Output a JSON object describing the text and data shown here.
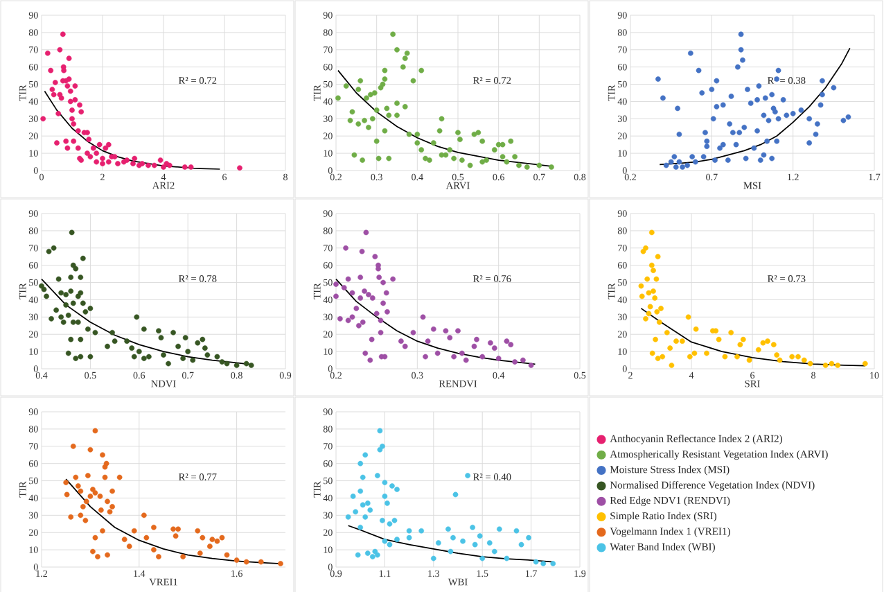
{
  "chart_data": [
    {
      "type": "scatter",
      "xlabel": "ARI2",
      "ylabel": "TIR",
      "xlim": [
        0,
        8
      ],
      "xticks": [
        0,
        2,
        4,
        6,
        8
      ],
      "ylim": [
        0,
        90
      ],
      "yticks": [
        0,
        10,
        20,
        30,
        40,
        50,
        60,
        70,
        80,
        90
      ],
      "grid": true,
      "marker": "circle",
      "annotations": [
        "R² = 0.72"
      ],
      "series": [
        {
          "name": "Anthocyanin Reflectance Index 2 (ARI2)",
          "color": "#e6206f",
          "x": [
            0.05,
            0.2,
            0.3,
            0.35,
            0.4,
            0.45,
            0.5,
            0.55,
            0.6,
            0.6,
            0.65,
            0.7,
            0.72,
            0.73,
            0.7,
            0.8,
            0.85,
            0.8,
            0.85,
            0.9,
            0.9,
            0.95,
            0.95,
            1.0,
            1.0,
            1.05,
            1.1,
            1.1,
            1.05,
            1.2,
            1.25,
            1.3,
            1.2,
            1.25,
            1.3,
            1.4,
            1.5,
            1.55,
            1.5,
            1.6,
            1.7,
            1.8,
            1.8,
            1.9,
            2.0,
            2.0,
            2.1,
            2.2,
            2.2,
            2.3,
            2.4,
            2.5,
            2.7,
            2.8,
            3.0,
            3.05,
            3.2,
            3.3,
            3.5,
            3.7,
            3.9,
            4.0,
            4.1,
            4.2,
            4.7,
            4.9,
            6.5
          ],
          "values": [
            30,
            68,
            58,
            47,
            44,
            51,
            16,
            33,
            70,
            44,
            42,
            79,
            60,
            58,
            52,
            52,
            49,
            17,
            13,
            65,
            53,
            46,
            40,
            35,
            30,
            27,
            49,
            41,
            17,
            23,
            38,
            34,
            13,
            7,
            6,
            22,
            22,
            18,
            10,
            8,
            13,
            10,
            5,
            15,
            7,
            4,
            13,
            15,
            5,
            8,
            8,
            4,
            5,
            6,
            4,
            7,
            3,
            4,
            3,
            3,
            6,
            2,
            4,
            3,
            2,
            2,
            1.5
          ]
        },
        {
          "type": "line",
          "marker": "none",
          "color": "#000000",
          "x": [
            0.1,
            0.5,
            1,
            1.5,
            2,
            2.5,
            3,
            4,
            5,
            5.85
          ],
          "values": [
            46,
            35,
            24.5,
            17,
            11.5,
            8,
            5.5,
            2.7,
            1.3,
            0.8
          ]
        }
      ]
    },
    {
      "type": "scatter",
      "xlabel": "ARVI",
      "ylabel": "TIR",
      "xlim": [
        0.2,
        0.8
      ],
      "xticks": [
        0.2,
        0.3,
        0.4,
        0.5,
        0.6,
        0.7,
        0.8
      ],
      "ylim": [
        0,
        90
      ],
      "yticks": [
        0,
        10,
        20,
        30,
        40,
        50,
        60,
        70,
        80,
        90
      ],
      "grid": true,
      "marker": "circle",
      "annotations": [
        "R² = 0.72"
      ],
      "series": [
        {
          "name": "Atmospherically Resistant Vegetation Index (ARVI)",
          "color": "#70ad47",
          "x": [
            0.205,
            0.225,
            0.235,
            0.24,
            0.245,
            0.255,
            0.255,
            0.26,
            0.265,
            0.27,
            0.275,
            0.28,
            0.285,
            0.29,
            0.295,
            0.3,
            0.3,
            0.305,
            0.31,
            0.315,
            0.32,
            0.32,
            0.32,
            0.325,
            0.33,
            0.33,
            0.34,
            0.35,
            0.35,
            0.35,
            0.365,
            0.37,
            0.37,
            0.375,
            0.38,
            0.39,
            0.4,
            0.4,
            0.41,
            0.41,
            0.42,
            0.43,
            0.44,
            0.455,
            0.46,
            0.46,
            0.47,
            0.48,
            0.49,
            0.5,
            0.505,
            0.51,
            0.53,
            0.54,
            0.55,
            0.56,
            0.56,
            0.57,
            0.59,
            0.6,
            0.61,
            0.61,
            0.62,
            0.63,
            0.64,
            0.65,
            0.67,
            0.7,
            0.73
          ],
          "values": [
            42,
            49,
            29,
            34,
            9,
            27,
            47,
            52,
            6,
            29,
            42,
            25,
            44,
            30,
            45,
            35,
            17,
            7,
            48,
            50,
            53,
            58,
            23,
            36,
            7,
            32,
            79,
            70,
            39,
            32,
            60,
            65,
            37,
            68,
            21,
            52,
            21,
            16,
            58,
            12,
            7,
            6,
            16,
            23,
            30,
            9,
            9,
            12,
            7,
            22,
            18,
            6,
            3,
            21,
            22,
            17,
            5,
            6,
            12,
            15,
            15,
            8,
            5,
            17,
            8,
            3,
            2,
            3,
            2
          ]
        },
        {
          "type": "line",
          "marker": "none",
          "color": "#000000",
          "x": [
            0.205,
            0.25,
            0.3,
            0.35,
            0.4,
            0.45,
            0.5,
            0.6,
            0.73
          ],
          "values": [
            58,
            45,
            34,
            25.5,
            19,
            14,
            10.5,
            6,
            2.5
          ]
        }
      ]
    },
    {
      "type": "scatter",
      "xlabel": "MSI",
      "ylabel": "TIR",
      "xlim": [
        0.2,
        1.7
      ],
      "xticks": [
        0.2,
        0.7,
        1.2,
        1.7
      ],
      "ylim": [
        0,
        90
      ],
      "yticks": [
        0,
        10,
        20,
        30,
        40,
        50,
        60,
        70,
        80,
        90
      ],
      "grid": true,
      "marker": "circle",
      "annotations": [
        "R² = 0.38"
      ],
      "series": [
        {
          "name": "Moisture Stress Index (MSI)",
          "color": "#4472c4",
          "x": [
            0.37,
            0.4,
            0.42,
            0.45,
            0.47,
            0.48,
            0.49,
            0.5,
            0.5,
            0.52,
            0.55,
            0.57,
            0.58,
            0.6,
            0.62,
            0.64,
            0.65,
            0.66,
            0.67,
            0.67,
            0.7,
            0.71,
            0.72,
            0.73,
            0.73,
            0.75,
            0.77,
            0.77,
            0.8,
            0.81,
            0.82,
            0.83,
            0.85,
            0.86,
            0.87,
            0.88,
            0.88,
            0.89,
            0.9,
            0.91,
            0.92,
            0.94,
            0.96,
            0.98,
            0.98,
            0.99,
            1.0,
            1.02,
            1.02,
            1.03,
            1.04,
            1.05,
            1.07,
            1.07,
            1.08,
            1.09,
            1.1,
            1.1,
            1.11,
            1.11,
            1.14,
            1.16,
            1.2,
            1.25,
            1.3,
            1.3,
            1.34,
            1.35,
            1.37,
            1.38,
            1.38,
            1.45,
            1.51,
            1.54
          ],
          "values": [
            53,
            42,
            3,
            5,
            8,
            2,
            36,
            21,
            5,
            2,
            3,
            68,
            8,
            5,
            58,
            45,
            8,
            22,
            17,
            14,
            47,
            30,
            6,
            52,
            37,
            13,
            38,
            15,
            6,
            27,
            43,
            22,
            15,
            60,
            22,
            79,
            70,
            64,
            25,
            7,
            47,
            39,
            13,
            41,
            23,
            49,
            6,
            9,
            32,
            42,
            17,
            29,
            7,
            44,
            36,
            34,
            53,
            17,
            58,
            30,
            41,
            32,
            33,
            35,
            30,
            16,
            21,
            27,
            38,
            44,
            52,
            48,
            29,
            31
          ]
        },
        {
          "type": "line",
          "marker": "none",
          "color": "#000000",
          "x": [
            0.38,
            0.5,
            0.6,
            0.7,
            0.8,
            0.9,
            1.0,
            1.1,
            1.2,
            1.3,
            1.4,
            1.5,
            1.55
          ],
          "values": [
            3.5,
            4.2,
            5,
            6.5,
            9,
            11.5,
            15,
            20,
            28,
            37,
            48,
            62,
            71
          ]
        }
      ]
    },
    {
      "type": "scatter",
      "xlabel": "NDVI",
      "ylabel": "TIR",
      "xlim": [
        0.4,
        0.9
      ],
      "xticks": [
        0.4,
        0.5,
        0.6,
        0.7,
        0.8,
        0.9
      ],
      "ylim": [
        0,
        90
      ],
      "yticks": [
        0,
        10,
        20,
        30,
        40,
        50,
        60,
        70,
        80,
        90
      ],
      "grid": true,
      "marker": "circle",
      "annotations": [
        "R² = 0.78"
      ],
      "series": [
        {
          "name": "Normalised Difference Vegetation Index (NDVI)",
          "color": "#375623",
          "x": [
            0.4,
            0.405,
            0.41,
            0.415,
            0.42,
            0.425,
            0.43,
            0.435,
            0.44,
            0.44,
            0.445,
            0.45,
            0.45,
            0.455,
            0.455,
            0.46,
            0.46,
            0.46,
            0.462,
            0.465,
            0.465,
            0.465,
            0.47,
            0.47,
            0.475,
            0.475,
            0.48,
            0.48,
            0.48,
            0.48,
            0.485,
            0.485,
            0.49,
            0.495,
            0.5,
            0.5,
            0.51,
            0.535,
            0.545,
            0.55,
            0.575,
            0.585,
            0.59,
            0.595,
            0.6,
            0.61,
            0.61,
            0.62,
            0.64,
            0.645,
            0.65,
            0.66,
            0.67,
            0.68,
            0.69,
            0.695,
            0.7,
            0.71,
            0.72,
            0.73,
            0.735,
            0.74,
            0.76,
            0.77,
            0.78,
            0.8,
            0.82,
            0.83
          ],
          "values": [
            48,
            46,
            42,
            68,
            29,
            70,
            34,
            52,
            44,
            30,
            27,
            43,
            37,
            31,
            9,
            53,
            45,
            17,
            79,
            60,
            38,
            27,
            6,
            58,
            42,
            27,
            53,
            44,
            17,
            7,
            64,
            38,
            33,
            23,
            35,
            7,
            21,
            13,
            21,
            16,
            16,
            12,
            7,
            30,
            10,
            23,
            6,
            7,
            22,
            18,
            8,
            3,
            21,
            13,
            6,
            18,
            10,
            5,
            15,
            17,
            12,
            8,
            7,
            4,
            3,
            2,
            3,
            2
          ]
        },
        {
          "type": "line",
          "marker": "none",
          "color": "#000000",
          "x": [
            0.4,
            0.45,
            0.5,
            0.55,
            0.6,
            0.65,
            0.7,
            0.75,
            0.8,
            0.83
          ],
          "values": [
            52,
            37,
            27,
            19.5,
            14,
            10,
            7,
            5,
            3.5,
            2.5
          ]
        }
      ]
    },
    {
      "type": "scatter",
      "xlabel": "RENDVI",
      "ylabel": "TIR",
      "xlim": [
        0.2,
        0.5
      ],
      "xticks": [
        0.2,
        0.3,
        0.4,
        0.5
      ],
      "ylim": [
        0,
        90
      ],
      "yticks": [
        0,
        10,
        20,
        30,
        40,
        50,
        60,
        70,
        80,
        90
      ],
      "grid": true,
      "marker": "circle",
      "annotations": [
        "R² = 0.76"
      ],
      "series": [
        {
          "name": "Red Edge NDV1 (RENDVI)",
          "color": "#9e4fa5",
          "x": [
            0.2,
            0.2,
            0.205,
            0.21,
            0.212,
            0.215,
            0.215,
            0.22,
            0.22,
            0.225,
            0.228,
            0.23,
            0.23,
            0.232,
            0.233,
            0.235,
            0.236,
            0.237,
            0.24,
            0.242,
            0.244,
            0.245,
            0.248,
            0.25,
            0.252,
            0.252,
            0.253,
            0.255,
            0.255,
            0.256,
            0.258,
            0.258,
            0.26,
            0.262,
            0.263,
            0.27,
            0.28,
            0.285,
            0.295,
            0.307,
            0.31,
            0.313,
            0.32,
            0.325,
            0.335,
            0.34,
            0.345,
            0.35,
            0.355,
            0.36,
            0.37,
            0.373,
            0.38,
            0.39,
            0.395,
            0.4,
            0.41,
            0.415,
            0.42,
            0.43,
            0.44
          ],
          "values": [
            49,
            42,
            29,
            47,
            70,
            52,
            28,
            44,
            30,
            35,
            25,
            53,
            41,
            68,
            27,
            45,
            9,
            79,
            43,
            5,
            17,
            41,
            65,
            32,
            60,
            58,
            53,
            28,
            21,
            7,
            50,
            38,
            7,
            44,
            33,
            52,
            16,
            13,
            21,
            30,
            7,
            16,
            23,
            9,
            22,
            18,
            7,
            22,
            9,
            5,
            13,
            17,
            7,
            15,
            12,
            6,
            16,
            14,
            4,
            5,
            2
          ]
        },
        {
          "type": "line",
          "marker": "none",
          "color": "#000000",
          "x": [
            0.2,
            0.225,
            0.25,
            0.275,
            0.3,
            0.325,
            0.35,
            0.375,
            0.4,
            0.445
          ],
          "values": [
            52,
            39,
            30,
            22,
            16,
            12,
            9,
            6.8,
            5,
            2.7
          ]
        }
      ]
    },
    {
      "type": "scatter",
      "xlabel": "SRI",
      "ylabel": "TIR",
      "xlim": [
        2,
        10
      ],
      "xticks": [
        2,
        4,
        6,
        8,
        10
      ],
      "ylim": [
        0,
        90
      ],
      "yticks": [
        0,
        10,
        20,
        30,
        40,
        50,
        60,
        70,
        80,
        90
      ],
      "grid": true,
      "marker": "circle",
      "annotations": [
        "R² = 0.73"
      ],
      "series": [
        {
          "name": "Simple Ratio Index (SRI)",
          "color": "#ffc000",
          "x": [
            2.35,
            2.38,
            2.42,
            2.5,
            2.5,
            2.55,
            2.6,
            2.6,
            2.65,
            2.7,
            2.7,
            2.72,
            2.75,
            2.75,
            2.8,
            2.82,
            2.85,
            2.87,
            2.9,
            2.9,
            2.95,
            3.0,
            3.05,
            3.2,
            3.3,
            3.35,
            3.5,
            3.7,
            3.9,
            3.95,
            4.1,
            4.15,
            4.5,
            4.7,
            4.8,
            4.9,
            5.1,
            5.3,
            5.5,
            5.6,
            5.7,
            5.9,
            6.2,
            6.35,
            6.5,
            6.7,
            6.8,
            6.9,
            7.3,
            7.5,
            7.7,
            7.9,
            8.4,
            8.6,
            8.8,
            9.7
          ],
          "values": [
            48,
            42,
            68,
            70,
            29,
            52,
            44,
            32,
            36,
            79,
            60,
            9,
            57,
            45,
            41,
            17,
            52,
            33,
            6,
            65,
            27,
            35,
            7,
            21,
            12,
            2,
            16,
            16,
            30,
            7,
            9,
            23,
            9,
            22,
            22,
            17,
            7,
            21,
            7,
            14,
            17,
            5,
            11,
            15,
            16,
            14,
            8,
            5,
            7,
            7,
            5,
            3,
            2,
            3,
            2,
            3
          ]
        },
        {
          "type": "line",
          "marker": "none",
          "color": "#000000",
          "x": [
            2.35,
            3,
            4,
            5,
            6,
            7,
            8,
            9,
            9.7
          ],
          "values": [
            35,
            27,
            15.5,
            10,
            6.5,
            4.2,
            2.8,
            2.1,
            1.8
          ]
        }
      ]
    },
    {
      "type": "scatter",
      "xlabel": "VREI1",
      "ylabel": "TIR",
      "xlim": [
        1.2,
        1.7
      ],
      "xticks": [
        1.2,
        1.4,
        1.6
      ],
      "ylim": [
        0,
        90
      ],
      "yticks": [
        0,
        10,
        20,
        30,
        40,
        50,
        60,
        70,
        80,
        90
      ],
      "grid": true,
      "marker": "circle",
      "annotations": [
        "R² = 0.77"
      ],
      "series": [
        {
          "name": "Vogelmann Index 1 (VREI1)",
          "color": "#e4691d",
          "x": [
            1.25,
            1.252,
            1.26,
            1.265,
            1.27,
            1.275,
            1.28,
            1.28,
            1.285,
            1.29,
            1.292,
            1.295,
            1.3,
            1.3,
            1.305,
            1.305,
            1.31,
            1.31,
            1.31,
            1.315,
            1.32,
            1.322,
            1.325,
            1.325,
            1.33,
            1.33,
            1.333,
            1.335,
            1.335,
            1.34,
            1.345,
            1.345,
            1.36,
            1.37,
            1.38,
            1.39,
            1.41,
            1.415,
            1.43,
            1.43,
            1.44,
            1.47,
            1.475,
            1.48,
            1.49,
            1.52,
            1.525,
            1.53,
            1.545,
            1.55,
            1.56,
            1.57,
            1.58,
            1.6,
            1.62,
            1.65,
            1.69
          ],
          "values": [
            49,
            42,
            29,
            70,
            52,
            47,
            44,
            30,
            35,
            27,
            38,
            53,
            68,
            41,
            45,
            9,
            79,
            43,
            17,
            6,
            41,
            33,
            65,
            21,
            58,
            52,
            60,
            38,
            7,
            32,
            44,
            35,
            52,
            16,
            12,
            21,
            30,
            17,
            23,
            10,
            6,
            22,
            18,
            22,
            6,
            21,
            8,
            17,
            12,
            16,
            15,
            17,
            7,
            4,
            3,
            3,
            2
          ]
        },
        {
          "type": "line",
          "marker": "none",
          "color": "#000000",
          "x": [
            1.25,
            1.3,
            1.35,
            1.4,
            1.45,
            1.5,
            1.55,
            1.6,
            1.65,
            1.69
          ],
          "values": [
            51,
            35,
            23,
            15.5,
            10.5,
            7,
            5,
            3.5,
            2.6,
            2
          ]
        }
      ]
    },
    {
      "type": "scatter",
      "xlabel": "WBI",
      "ylabel": "TIR",
      "xlim": [
        0.9,
        1.9
      ],
      "xticks": [
        0.9,
        1.1,
        1.3,
        1.5,
        1.7,
        1.9
      ],
      "ylim": [
        0,
        90
      ],
      "yticks": [
        0,
        10,
        20,
        30,
        40,
        50,
        60,
        70,
        80,
        90
      ],
      "grid": true,
      "marker": "circle",
      "annotations": [
        "R² = 0.40"
      ],
      "series": [
        {
          "name": "Water Band Index (WBI)",
          "color": "#4bc3e6",
          "x": [
            0.95,
            0.97,
            0.98,
            0.99,
            1.0,
            1.0,
            1.0,
            1.01,
            1.01,
            1.02,
            1.02,
            1.03,
            1.03,
            1.04,
            1.05,
            1.06,
            1.07,
            1.07,
            1.08,
            1.08,
            1.09,
            1.09,
            1.1,
            1.1,
            1.1,
            1.11,
            1.12,
            1.12,
            1.13,
            1.14,
            1.15,
            1.15,
            1.2,
            1.2,
            1.25,
            1.3,
            1.32,
            1.36,
            1.37,
            1.38,
            1.39,
            1.42,
            1.44,
            1.46,
            1.47,
            1.49,
            1.5,
            1.53,
            1.55,
            1.57,
            1.6,
            1.64,
            1.66,
            1.69,
            1.72,
            1.75,
            1.79
          ],
          "values": [
            29,
            41,
            32,
            7,
            60,
            44,
            23,
            52,
            36,
            65,
            29,
            37,
            8,
            33,
            6,
            9,
            53,
            7,
            79,
            68,
            70,
            27,
            49,
            41,
            15,
            37,
            25,
            13,
            47,
            27,
            45,
            16,
            21,
            17,
            21,
            5,
            14,
            22,
            9,
            17,
            42,
            15,
            53,
            23,
            13,
            18,
            5,
            14,
            9,
            22,
            5,
            21,
            13,
            17,
            3,
            2,
            2
          ]
        },
        {
          "type": "line",
          "marker": "none",
          "color": "#000000",
          "x": [
            0.95,
            1.0,
            1.1,
            1.2,
            1.3,
            1.4,
            1.5,
            1.6,
            1.7,
            1.79
          ],
          "values": [
            24,
            21.5,
            16,
            13,
            10.5,
            8,
            6,
            4.8,
            4,
            3
          ]
        }
      ]
    }
  ]
}
